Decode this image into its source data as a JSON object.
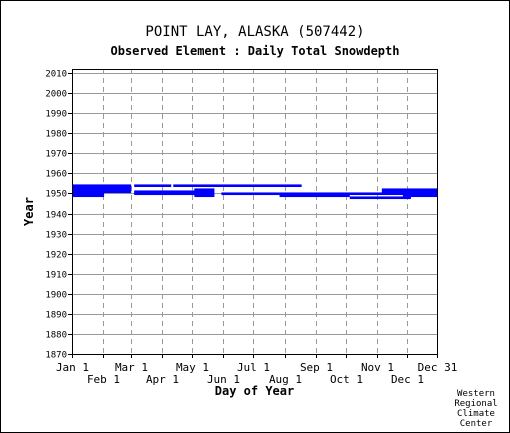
{
  "title": "POINT LAY, ALASKA   (507442)",
  "subtitle": "Observed Element : Daily Total Snowdepth",
  "credit": [
    "Western",
    "Regional",
    "Climate",
    "Center"
  ],
  "chart_data": {
    "type": "bar",
    "title": "POINT LAY, ALASKA   (507442)",
    "subtitle": "Observed Element : Daily Total Snowdepth",
    "xlabel": "Day of Year",
    "ylabel": "Year",
    "x_ticks": [
      {
        "day": 1,
        "label": "Jan 1",
        "row": 0
      },
      {
        "day": 32,
        "label": "Feb 1",
        "row": 1
      },
      {
        "day": 60,
        "label": "Mar 1",
        "row": 0
      },
      {
        "day": 91,
        "label": "Apr 1",
        "row": 1
      },
      {
        "day": 121,
        "label": "May 1",
        "row": 0
      },
      {
        "day": 152,
        "label": "Jun 1",
        "row": 1
      },
      {
        "day": 182,
        "label": "Jul 1",
        "row": 0
      },
      {
        "day": 213,
        "label": "Aug 1",
        "row": 1
      },
      {
        "day": 244,
        "label": "Sep 1",
        "row": 0
      },
      {
        "day": 274,
        "label": "Oct 1",
        "row": 1
      },
      {
        "day": 305,
        "label": "Nov 1",
        "row": 0
      },
      {
        "day": 335,
        "label": "Dec 1",
        "row": 1
      },
      {
        "day": 365,
        "label": "Dec 31",
        "row": 0
      }
    ],
    "xlim": [
      1,
      365
    ],
    "ylim": [
      1870,
      2012
    ],
    "y_ticks": [
      1870,
      1880,
      1890,
      1900,
      1910,
      1920,
      1930,
      1940,
      1950,
      1960,
      1970,
      1980,
      1990,
      2000,
      2010
    ],
    "grid": true,
    "color": "#0000ff",
    "segments": [
      {
        "year": 1954,
        "start": 1,
        "end": 60
      },
      {
        "year": 1954,
        "start": 63,
        "end": 100
      },
      {
        "year": 1954,
        "start": 102,
        "end": 230
      },
      {
        "year": 1953,
        "start": 1,
        "end": 60
      },
      {
        "year": 1952,
        "start": 1,
        "end": 60
      },
      {
        "year": 1952,
        "start": 123,
        "end": 143
      },
      {
        "year": 1952,
        "start": 310,
        "end": 365
      },
      {
        "year": 1951,
        "start": 1,
        "end": 60
      },
      {
        "year": 1951,
        "start": 63,
        "end": 143
      },
      {
        "year": 1951,
        "start": 310,
        "end": 365
      },
      {
        "year": 1950,
        "start": 1,
        "end": 33
      },
      {
        "year": 1950,
        "start": 63,
        "end": 143
      },
      {
        "year": 1950,
        "start": 150,
        "end": 208
      },
      {
        "year": 1950,
        "start": 208,
        "end": 365
      },
      {
        "year": 1949,
        "start": 1,
        "end": 33
      },
      {
        "year": 1949,
        "start": 123,
        "end": 143
      },
      {
        "year": 1949,
        "start": 208,
        "end": 278
      },
      {
        "year": 1949,
        "start": 331,
        "end": 365
      },
      {
        "year": 1948,
        "start": 278,
        "end": 339
      }
    ]
  }
}
